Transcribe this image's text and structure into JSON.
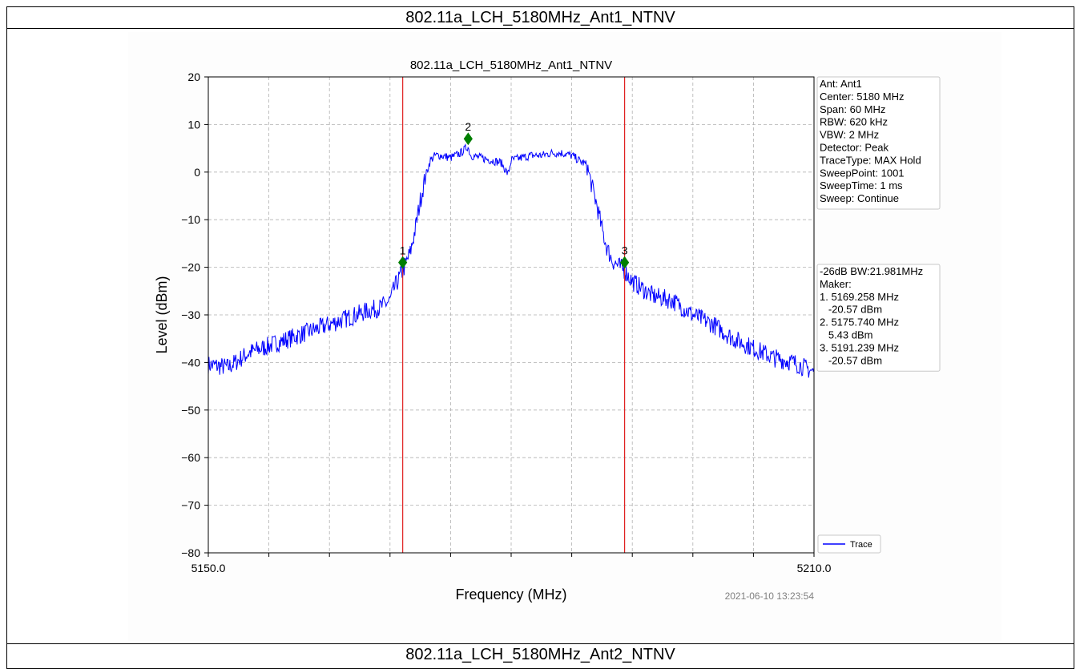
{
  "page": {
    "header_top": "802.11a_LCH_5180MHz_Ant1_NTNV",
    "header_bottom": "802.11a_LCH_5180MHz_Ant2_NTNV"
  },
  "chart_data": {
    "type": "line",
    "title": "802.11a_LCH_5180MHz_Ant1_NTNV",
    "xlabel": "Frequency (MHz)",
    "ylabel": "Level (dBm)",
    "xlim": [
      5150.0,
      5210.0
    ],
    "ylim": [
      -80,
      20
    ],
    "x_tick_labels": [
      "5150.0",
      "5210.0"
    ],
    "y_ticks": [
      20,
      10,
      0,
      -10,
      -20,
      -30,
      -40,
      -50,
      -60,
      -70,
      -80
    ],
    "grid": true,
    "timestamp": "2021-06-10 13:23:54",
    "legend": {
      "position": "bottom-right",
      "entries": [
        "Trace"
      ]
    },
    "series": [
      {
        "name": "Trace",
        "color": "#0000ff",
        "x": [
          5150,
          5152,
          5154,
          5156,
          5158,
          5160,
          5162,
          5164,
          5166,
          5167,
          5168,
          5168.5,
          5169.3,
          5170,
          5170.5,
          5171,
          5171.5,
          5172,
          5172.5,
          5173,
          5174,
          5175,
          5175.7,
          5176,
          5177,
          5178,
          5179,
          5179.7,
          5180,
          5181,
          5182,
          5183,
          5184,
          5185,
          5186,
          5186.7,
          5187.5,
          5188,
          5188.5,
          5189,
          5189.5,
          5190,
          5190.5,
          5191.2,
          5192,
          5194,
          5196,
          5198,
          5200,
          5202,
          5204,
          5206,
          5208,
          5210
        ],
        "y": [
          -40.5,
          -41,
          -38,
          -36.5,
          -35,
          -33.5,
          -32,
          -30.5,
          -29,
          -28.5,
          -27,
          -24,
          -20.6,
          -17,
          -12,
          -6,
          -1,
          2.5,
          3.5,
          3.5,
          3,
          4,
          5.4,
          3.5,
          3,
          2.5,
          2,
          -0.5,
          2.5,
          3,
          3.5,
          3.5,
          4,
          4,
          3.5,
          2.5,
          1.5,
          -3,
          -7,
          -12,
          -16,
          -18.5,
          -19.5,
          -20.6,
          -23,
          -26,
          -27,
          -30,
          -32,
          -35,
          -37,
          -39,
          -40,
          -42
        ]
      }
    ],
    "vlines": [
      {
        "x": 5169.258,
        "color": "#e02020"
      },
      {
        "x": 5191.239,
        "color": "#e02020"
      }
    ],
    "markers": [
      {
        "label": "1",
        "x": 5169.258,
        "y": -19,
        "color": "#007f00"
      },
      {
        "label": "2",
        "x": 5175.74,
        "y": 7,
        "color": "#007f00"
      },
      {
        "label": "3",
        "x": 5191.239,
        "y": -19,
        "color": "#007f00"
      }
    ],
    "info_box": [
      "Ant: Ant1",
      "Center: 5180 MHz",
      "Span: 60 MHz",
      "RBW: 620 kHz",
      "VBW: 2 MHz",
      "Detector: Peak",
      "TraceType: MAX Hold",
      "SweepPoint: 1001",
      "SweepTime: 1 ms",
      "Sweep: Continue"
    ],
    "marker_box": [
      "-26dB BW:21.981MHz",
      "Maker:",
      "1. 5169.258 MHz",
      "   -20.57 dBm",
      "2. 5175.740 MHz",
      "   5.43 dBm",
      "3. 5191.239 MHz",
      "   -20.57 dBm"
    ]
  }
}
